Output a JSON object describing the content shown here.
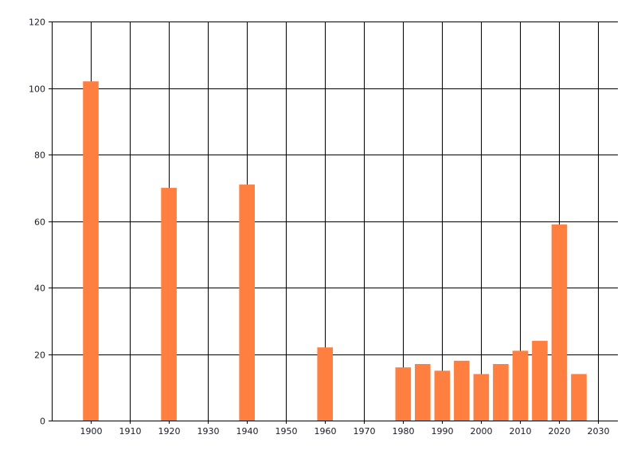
{
  "chart_data": {
    "type": "bar",
    "title": "",
    "xlabel": "",
    "ylabel": "",
    "x": [
      1900,
      1920,
      1940,
      1960,
      1980,
      1985,
      1990,
      1995,
      2000,
      2005,
      2010,
      2015,
      2020,
      2025
    ],
    "values": [
      102,
      70,
      71,
      22,
      16,
      17,
      15,
      18,
      14,
      17,
      21,
      24,
      59,
      14
    ],
    "xlim": [
      1890,
      2035
    ],
    "ylim": [
      0,
      120
    ],
    "xticks": [
      1900,
      1910,
      1920,
      1930,
      1940,
      1950,
      1960,
      1970,
      1980,
      1990,
      2000,
      2010,
      2020,
      2030
    ],
    "yticks": [
      0,
      20,
      40,
      60,
      80,
      100,
      120
    ],
    "grid": true,
    "bar_color": "#ff7f40",
    "legend": "none"
  }
}
